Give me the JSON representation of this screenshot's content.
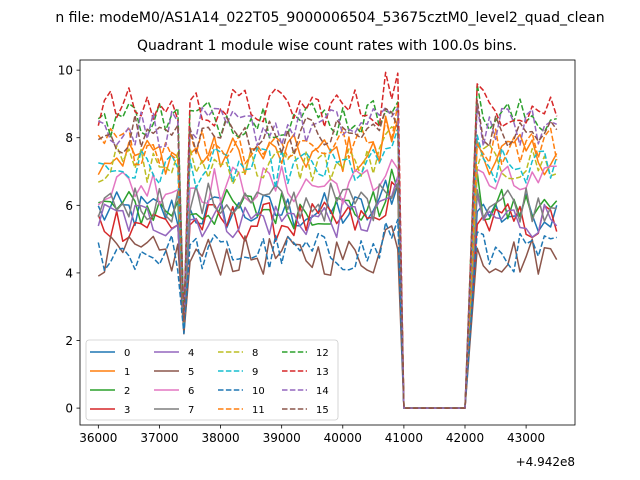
{
  "chart_data": {
    "type": "line",
    "suptitle": "n file: modeM0/AS1A14_022T05_9000006504_53675cztM0_level2_quad_clean",
    "title": "Quadrant 1 module wise count rates with 100.0s bins.",
    "xlabel": "",
    "ylabel": "",
    "offset_text": "+4.942e8",
    "xlim": [
      35700,
      43800
    ],
    "ylim": [
      -0.5,
      10.3
    ],
    "x_ticks": [
      36000,
      37000,
      38000,
      39000,
      40000,
      41000,
      42000,
      43000
    ],
    "y_ticks": [
      0,
      2,
      4,
      6,
      8,
      10
    ],
    "gaps": [
      {
        "start": 37300,
        "end": 37500,
        "dip_min": 2.2
      },
      {
        "start": 40800,
        "end": 42200,
        "flat": 0
      }
    ],
    "segments": [
      [
        36000,
        37300
      ],
      [
        37500,
        40900
      ],
      [
        42200,
        43500
      ]
    ],
    "step": 100,
    "series": [
      {
        "name": "0",
        "base": 5.8,
        "color": "#1f77b4",
        "dash": "solid"
      },
      {
        "name": "1",
        "base": 7.5,
        "color": "#ff7f0e",
        "dash": "solid"
      },
      {
        "name": "2",
        "base": 5.9,
        "color": "#2ca02c",
        "dash": "solid"
      },
      {
        "name": "3",
        "base": 5.5,
        "color": "#d62728",
        "dash": "solid"
      },
      {
        "name": "4",
        "base": 5.6,
        "color": "#9467bd",
        "dash": "solid"
      },
      {
        "name": "5",
        "base": 4.5,
        "color": "#8c564b",
        "dash": "solid"
      },
      {
        "name": "6",
        "base": 6.6,
        "color": "#e377c2",
        "dash": "solid"
      },
      {
        "name": "7",
        "base": 6.1,
        "color": "#7f7f7f",
        "dash": "solid"
      },
      {
        "name": "8",
        "base": 7.2,
        "color": "#bcbd22",
        "dash": "dashed"
      },
      {
        "name": "9",
        "base": 7.1,
        "color": "#17becf",
        "dash": "dashed"
      },
      {
        "name": "10",
        "base": 4.6,
        "color": "#1f77b4",
        "dash": "dashed"
      },
      {
        "name": "11",
        "base": 7.8,
        "color": "#ff7f0e",
        "dash": "dashed"
      },
      {
        "name": "12",
        "base": 8.6,
        "color": "#2ca02c",
        "dash": "dashed"
      },
      {
        "name": "13",
        "base": 8.9,
        "color": "#d62728",
        "dash": "dashed"
      },
      {
        "name": "14",
        "base": 8.3,
        "color": "#9467bd",
        "dash": "dashed"
      },
      {
        "name": "15",
        "base": 8.1,
        "color": "#8c564b",
        "dash": "dashed"
      }
    ],
    "legend": {
      "location": "lower-left",
      "columns": 4
    }
  }
}
